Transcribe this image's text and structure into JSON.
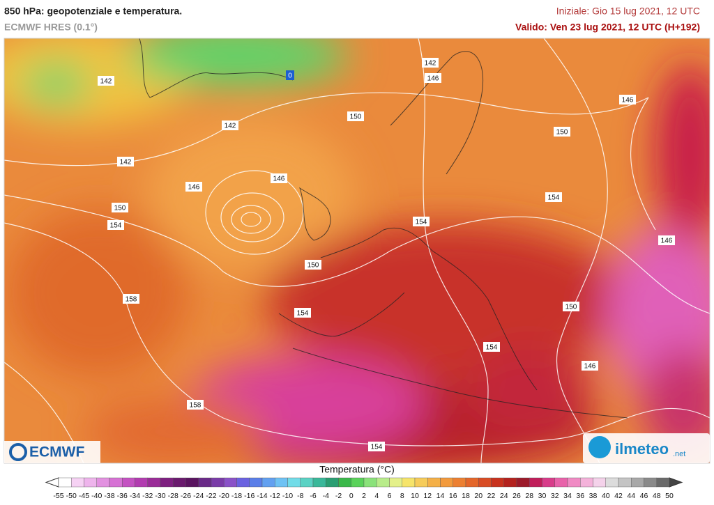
{
  "header": {
    "title": "850 hPa: geopotenziale e temperatura.",
    "model": "ECMWF HRES (0.1°)",
    "init": "Iniziale: Gio 15 lug 2021, 12 UTC",
    "valid": "Valido: Ven 23 lug 2021, 12 UTC (H+192)"
  },
  "map": {
    "contour_labels": [
      142,
      142,
      142,
      146,
      146,
      150,
      154,
      158,
      150,
      154,
      158,
      154,
      150,
      142,
      146,
      150,
      146,
      154,
      154,
      146,
      150,
      154,
      146,
      0
    ]
  },
  "logos": {
    "left": "ECMWF",
    "right": "ilmeteo",
    "right_suffix": ".net"
  },
  "legend": {
    "title": "Temperatura (°C)",
    "ticks": [
      -55,
      -50,
      -45,
      -40,
      -38,
      -36,
      -34,
      -32,
      -30,
      -28,
      -26,
      -24,
      -22,
      -20,
      -18,
      -16,
      -14,
      -12,
      -10,
      -8,
      -6,
      -4,
      -2,
      0,
      2,
      4,
      6,
      8,
      10,
      12,
      14,
      16,
      18,
      20,
      22,
      24,
      26,
      28,
      30,
      32,
      34,
      36,
      38,
      40,
      42,
      44,
      46,
      48,
      50
    ]
  }
}
